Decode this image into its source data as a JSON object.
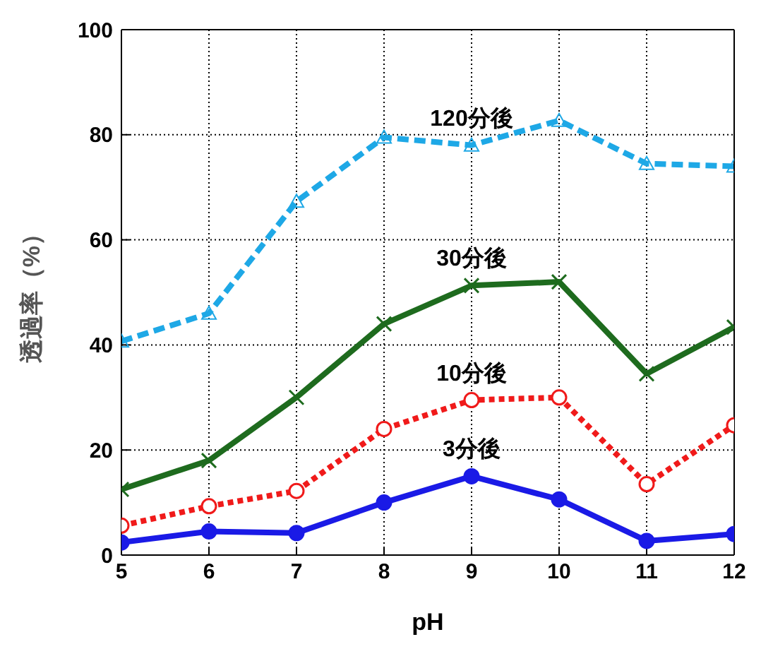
{
  "chart_data": {
    "type": "line",
    "xlabel": "pH",
    "ylabel": "透過率（%）",
    "x": [
      5,
      6,
      7,
      8,
      9,
      10,
      11,
      12
    ],
    "xlim": [
      5,
      12
    ],
    "xticks": [
      5,
      6,
      7,
      8,
      9,
      10,
      11,
      12
    ],
    "ylim": [
      0,
      100
    ],
    "yticks": [
      0,
      20,
      40,
      60,
      80,
      100
    ],
    "grid": true,
    "legend": false,
    "series": [
      {
        "name": "120分後",
        "color": "#1ea8e6",
        "line_style": "dashed",
        "marker": "triangle",
        "values": [
          40.7,
          46,
          67.3,
          79.5,
          78,
          82.7,
          74.5,
          74
        ]
      },
      {
        "name": "30分後",
        "color": "#1e6b1e",
        "line_style": "solid",
        "marker": "cross",
        "values": [
          12.5,
          18,
          30,
          44,
          51.3,
          52,
          34.5,
          43.4
        ]
      },
      {
        "name": "10分後",
        "color": "#f01a1a",
        "line_style": "dotted",
        "marker": "circle",
        "values": [
          5.6,
          9.3,
          12.2,
          24,
          29.5,
          30,
          13.5,
          24.7
        ]
      },
      {
        "name": "3分後",
        "color": "#1a1ae6",
        "line_style": "solid",
        "marker": "circle",
        "values": [
          2.4,
          4.5,
          4.2,
          10,
          15,
          10.6,
          2.7,
          4
        ]
      }
    ]
  }
}
